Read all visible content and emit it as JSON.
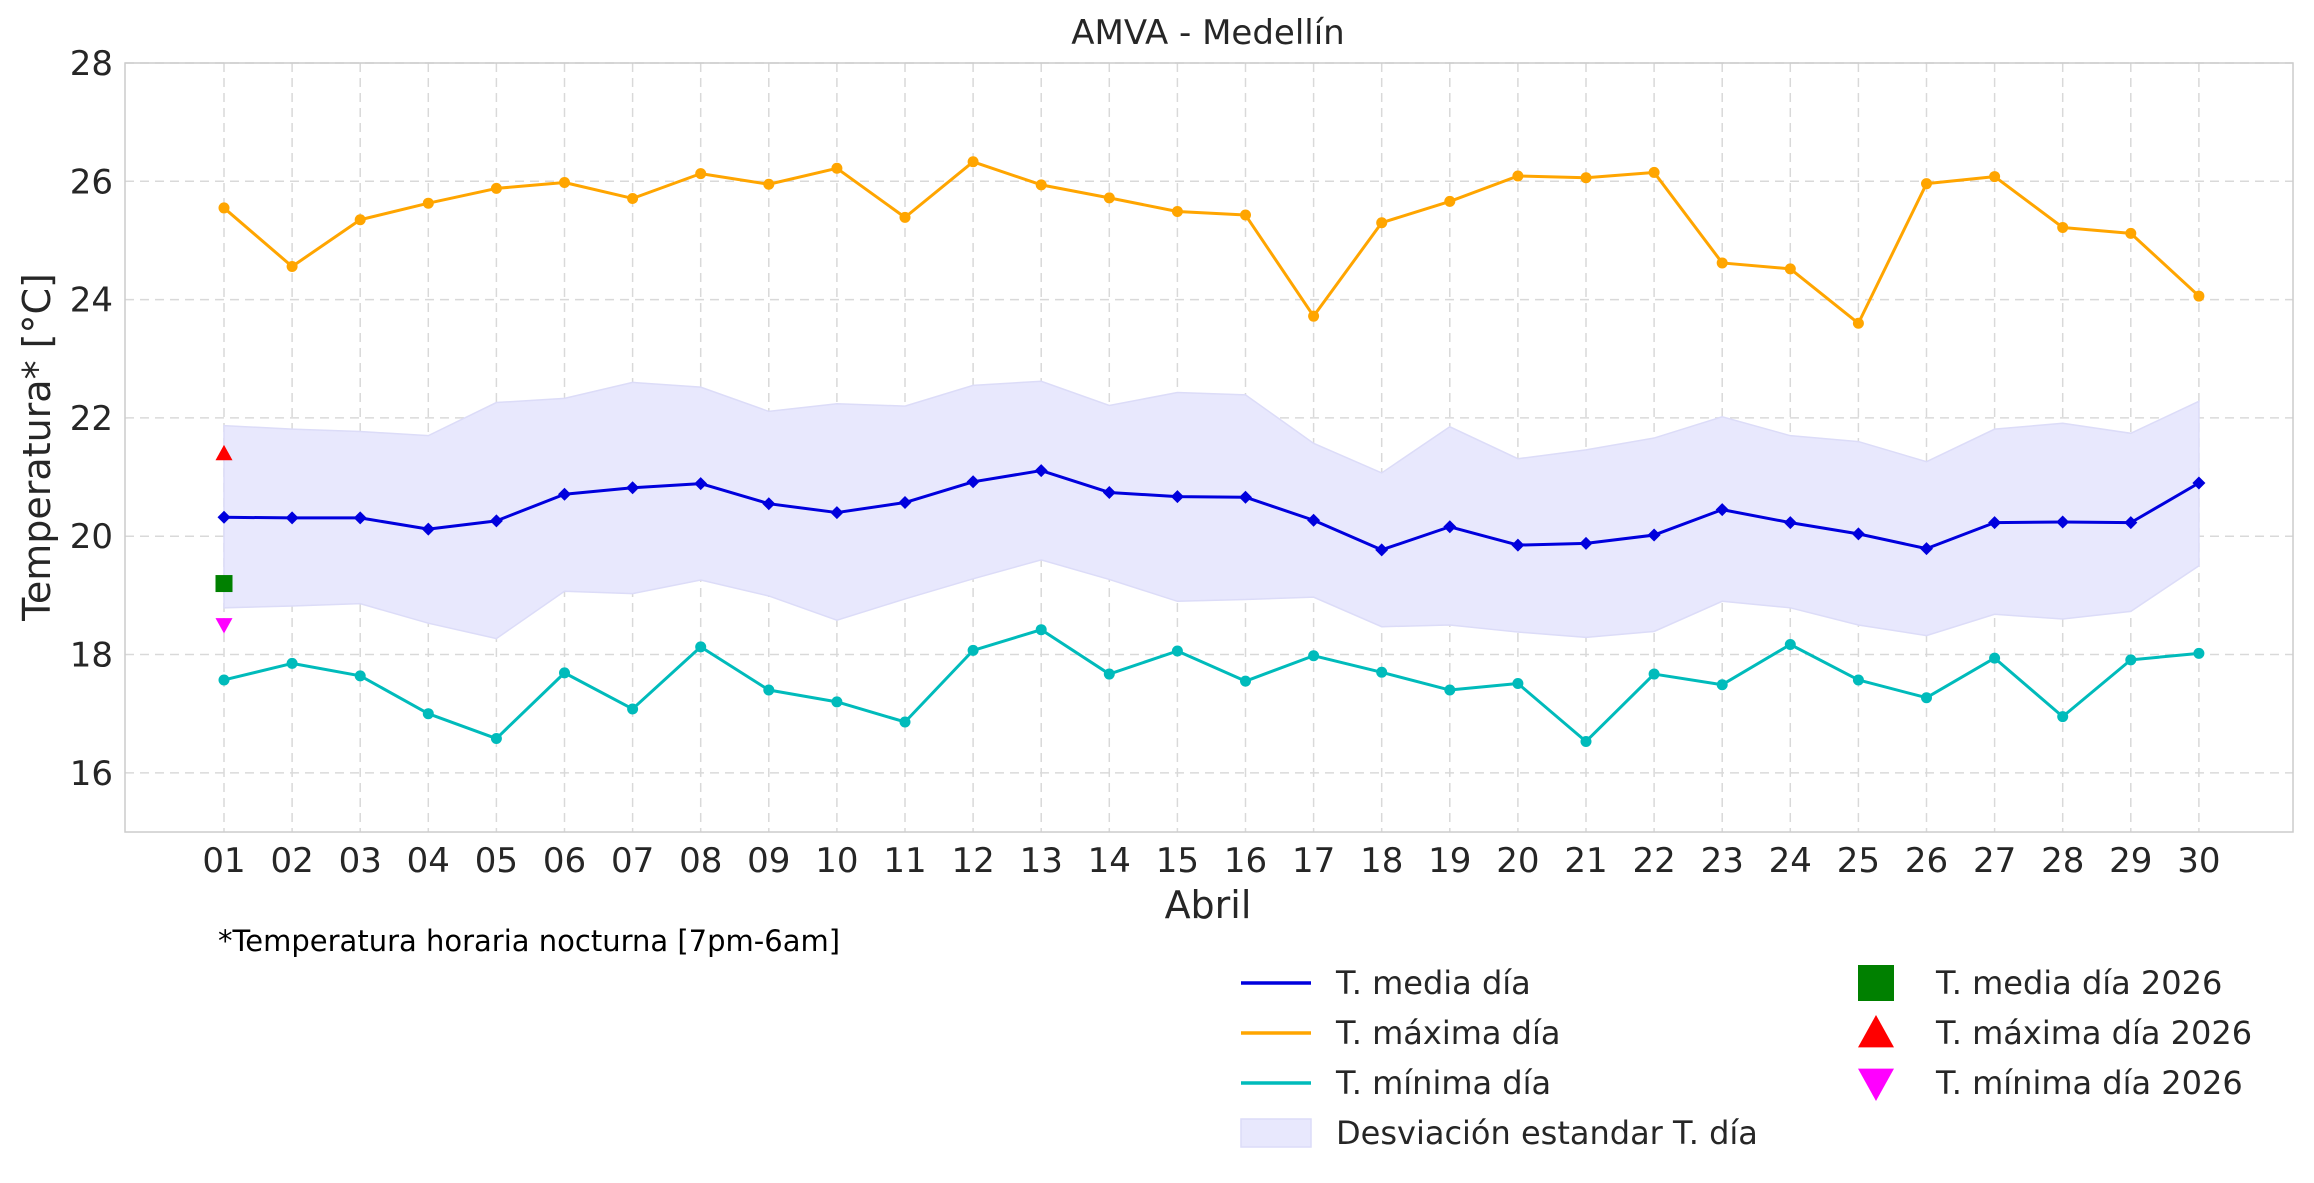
{
  "chart_data": {
    "type": "line",
    "title": "AMVA - Medellín",
    "xlabel": "Abril",
    "ylabel": "Temperatura* [°C]",
    "ylim": [
      15,
      28
    ],
    "yticks": [
      16,
      18,
      20,
      22,
      24,
      26,
      28
    ],
    "grid": true,
    "legend_position": "bottom-right",
    "footnote": "*Temperatura horaria nocturna [7pm-6am]",
    "categories": [
      "01",
      "02",
      "03",
      "04",
      "05",
      "06",
      "07",
      "08",
      "09",
      "10",
      "11",
      "12",
      "13",
      "14",
      "15",
      "16",
      "17",
      "18",
      "19",
      "20",
      "21",
      "22",
      "23",
      "24",
      "25",
      "26",
      "27",
      "28",
      "29",
      "30"
    ],
    "series": [
      {
        "name": "T. media día",
        "color": "#0000dd",
        "marker": "diamond",
        "values": [
          20.32,
          20.31,
          20.31,
          20.12,
          20.26,
          20.71,
          20.82,
          20.89,
          20.55,
          20.4,
          20.57,
          20.92,
          21.11,
          20.74,
          20.67,
          20.66,
          20.27,
          19.77,
          20.16,
          19.85,
          19.88,
          20.02,
          20.45,
          20.23,
          20.04,
          19.79,
          20.23,
          20.24,
          20.23,
          20.9
        ]
      },
      {
        "name": "T. máxima día",
        "color": "#ffa500",
        "marker": "circle",
        "values": [
          25.55,
          24.56,
          25.35,
          25.63,
          25.88,
          25.98,
          25.71,
          26.13,
          25.95,
          26.22,
          25.39,
          26.33,
          25.94,
          25.72,
          25.49,
          25.43,
          23.72,
          25.3,
          25.66,
          26.09,
          26.06,
          26.15,
          24.62,
          24.52,
          23.6,
          25.96,
          26.08,
          25.22,
          25.12,
          24.06
        ]
      },
      {
        "name": "T. mínima día",
        "color": "#00bbbb",
        "marker": "circle",
        "values": [
          17.57,
          17.85,
          17.64,
          17.0,
          16.58,
          17.69,
          17.08,
          18.13,
          17.4,
          17.2,
          16.86,
          18.07,
          18.42,
          17.67,
          18.06,
          17.55,
          17.98,
          17.7,
          17.4,
          17.51,
          16.53,
          17.67,
          17.49,
          18.17,
          17.57,
          17.27,
          17.94,
          16.95,
          17.91,
          18.02
        ]
      }
    ],
    "band": {
      "name": "Desviación estandar T. día",
      "color": "#e8e8fd",
      "upper": [
        21.87,
        21.81,
        21.77,
        21.7,
        22.26,
        22.33,
        22.6,
        22.52,
        22.11,
        22.24,
        22.2,
        22.55,
        22.62,
        22.21,
        22.43,
        22.39,
        21.57,
        21.07,
        21.85,
        21.31,
        21.46,
        21.66,
        22.02,
        21.7,
        21.6,
        21.26,
        21.81,
        21.91,
        21.74,
        22.28
      ],
      "lower": [
        18.79,
        18.82,
        18.86,
        18.53,
        18.27,
        19.07,
        19.03,
        19.26,
        18.99,
        18.58,
        18.94,
        19.28,
        19.6,
        19.27,
        18.9,
        18.93,
        18.97,
        18.47,
        18.5,
        18.38,
        18.29,
        18.39,
        18.9,
        18.79,
        18.5,
        18.32,
        18.68,
        18.6,
        18.73,
        19.5
      ]
    },
    "points_2026": [
      {
        "name": "T. media día 2026",
        "color": "#008000",
        "marker": "square",
        "day": "01",
        "value": 19.2
      },
      {
        "name": "T. máxima día 2026",
        "color": "#ff0000",
        "marker": "triangle-up",
        "day": "01",
        "value": 21.4
      },
      {
        "name": "T. mínima día 2026",
        "color": "#ff00ff",
        "marker": "triangle-down",
        "day": "01",
        "value": 18.5
      }
    ]
  }
}
